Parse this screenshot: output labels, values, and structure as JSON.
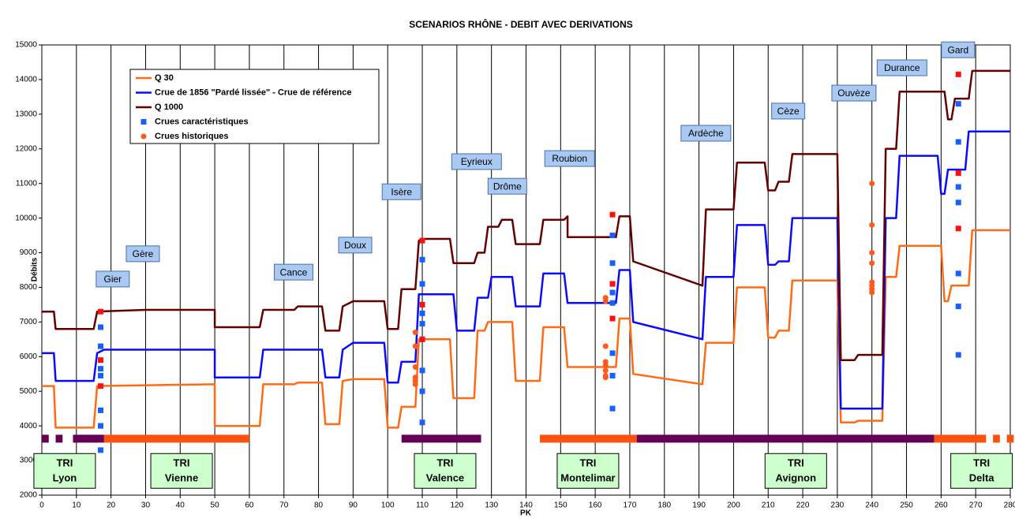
{
  "chart_data": {
    "type": "line",
    "title": "SCENARIOS RHÔNE - DEBIT AVEC DERIVATIONS",
    "x_label": "PK",
    "y_label": "Débits",
    "xlim": [
      0,
      280
    ],
    "ylim": [
      2000,
      15000
    ],
    "xticks": [
      0,
      10,
      20,
      30,
      40,
      50,
      60,
      70,
      80,
      90,
      100,
      110,
      120,
      130,
      140,
      150,
      160,
      170,
      180,
      190,
      200,
      210,
      220,
      230,
      240,
      250,
      260,
      270,
      280
    ],
    "yticks": [
      2000,
      3000,
      4000,
      5000,
      6000,
      7000,
      8000,
      9000,
      10000,
      11000,
      12000,
      13000,
      14000,
      15000
    ],
    "grid": "x",
    "series": [
      {
        "name": "Q 30",
        "color": "#ff6a13",
        "x": [
          0,
          3.5,
          4,
          15,
          16,
          50,
          50,
          63,
          64,
          73,
          74,
          81,
          82,
          86,
          87,
          90,
          99,
          100,
          103,
          104,
          108,
          109,
          118,
          119,
          125,
          126,
          128,
          129,
          136,
          137,
          144,
          145,
          151,
          152,
          166,
          167,
          170,
          171,
          191,
          192,
          200,
          201,
          209,
          210,
          212,
          213,
          216,
          217,
          230,
          231,
          235,
          236,
          243,
          244,
          247,
          248,
          260,
          261,
          262,
          263,
          268,
          269,
          280
        ],
        "values": [
          5150,
          5150,
          3950,
          3950,
          5150,
          5200,
          4000,
          4000,
          5200,
          5200,
          5250,
          5250,
          4050,
          4050,
          5300,
          5350,
          5350,
          3950,
          3950,
          4550,
          4550,
          6500,
          6500,
          4800,
          4800,
          6750,
          6750,
          7000,
          7000,
          5300,
          5300,
          6850,
          6850,
          5700,
          5700,
          7100,
          7100,
          5500,
          5200,
          6400,
          6400,
          8000,
          8000,
          6550,
          6550,
          6750,
          6750,
          8200,
          8200,
          4100,
          4100,
          4150,
          4150,
          8300,
          8300,
          9200,
          9200,
          7600,
          7600,
          8050,
          8050,
          9650,
          9650
        ]
      },
      {
        "name": "Crue de 1856 \"Pardé lissée\" - Crue de référence",
        "color": "#0a0aff",
        "x": [
          0,
          3.5,
          4,
          15,
          16,
          18,
          50,
          50,
          63,
          64,
          81,
          82,
          86,
          87,
          90,
          99,
          100,
          103,
          104,
          108,
          109,
          119,
          120,
          125,
          126,
          129,
          130,
          136,
          137,
          144,
          145,
          151,
          152,
          166,
          167,
          170,
          171,
          191,
          192,
          200,
          201,
          209,
          210,
          212,
          213,
          216,
          217,
          230,
          231,
          243,
          244,
          247,
          248,
          259,
          260,
          261,
          262,
          267,
          268,
          280
        ],
        "values": [
          6100,
          6100,
          5300,
          5300,
          6100,
          6200,
          6200,
          5400,
          5400,
          6200,
          6200,
          5400,
          5400,
          6200,
          6400,
          6400,
          5250,
          5250,
          5850,
          5850,
          7800,
          7800,
          6750,
          6750,
          7700,
          7700,
          8300,
          8300,
          7450,
          7450,
          8400,
          8400,
          7550,
          7550,
          8500,
          8500,
          7000,
          6500,
          8300,
          8300,
          9800,
          9800,
          8650,
          8650,
          8750,
          8750,
          10000,
          10000,
          4500,
          4500,
          10000,
          10000,
          11800,
          11800,
          10700,
          10700,
          11400,
          11400,
          12500,
          12500
        ]
      },
      {
        "name": "Q 1000",
        "color": "#660000",
        "x": [
          0,
          3.5,
          4,
          15,
          16,
          30,
          50,
          50,
          63,
          64,
          73,
          74,
          81,
          82,
          86,
          87,
          90,
          99,
          100,
          103,
          104,
          108,
          109,
          110,
          118,
          119,
          125,
          126,
          128,
          129,
          132,
          133,
          136,
          137,
          144,
          145,
          151,
          152,
          152,
          166,
          167,
          170,
          171,
          191,
          192,
          200,
          201,
          209,
          210,
          212,
          213,
          216,
          217,
          230,
          231,
          235,
          236,
          243,
          244,
          247,
          248,
          261,
          262,
          263,
          264,
          268,
          269,
          280
        ],
        "values": [
          7300,
          7300,
          6800,
          6800,
          7300,
          7350,
          7350,
          6850,
          6850,
          7350,
          7350,
          7450,
          7450,
          6750,
          6750,
          7450,
          7600,
          7600,
          6800,
          6800,
          7950,
          7950,
          9350,
          9400,
          9400,
          8700,
          8700,
          9000,
          9000,
          9750,
          9750,
          9950,
          9950,
          9250,
          9250,
          9950,
          9950,
          10050,
          9450,
          9450,
          10050,
          10050,
          8750,
          8050,
          10250,
          10250,
          11600,
          11600,
          10800,
          10800,
          11050,
          11050,
          11850,
          11850,
          5900,
          5900,
          6050,
          6050,
          12000,
          12000,
          13650,
          13650,
          12850,
          12850,
          13450,
          13450,
          14250,
          14250
        ]
      }
    ],
    "scatter": [
      {
        "name": "Crues caractéristiques",
        "color": "#1560ff",
        "marker": "square",
        "x": [
          17,
          17,
          17,
          17,
          17,
          17,
          17,
          110,
          110,
          110,
          110,
          110,
          110,
          110,
          110,
          165,
          165,
          165,
          165,
          165,
          165,
          165,
          265,
          265,
          265,
          265,
          265,
          265,
          265
        ],
        "values": [
          6850,
          6300,
          5650,
          5450,
          4450,
          4000,
          3300,
          8800,
          8100,
          7250,
          6950,
          6500,
          5600,
          5000,
          4100,
          9500,
          8700,
          7850,
          7550,
          6100,
          5450,
          4500,
          13300,
          12200,
          10900,
          10450,
          8400,
          7450,
          6050
        ]
      },
      {
        "name": "Crues historiques",
        "color": "#ff5a1a",
        "marker": "circle",
        "x": [
          108,
          108,
          108,
          108,
          108,
          108,
          163,
          163,
          163,
          163,
          163,
          163,
          163,
          163,
          240,
          240,
          240,
          240,
          240,
          240,
          240,
          240
        ],
        "values": [
          6700,
          6300,
          5700,
          5400,
          5300,
          5200,
          7700,
          7600,
          6300,
          5850,
          5750,
          5600,
          5450,
          5400,
          11000,
          9800,
          9000,
          8700,
          8150,
          8050,
          7950,
          7850
        ]
      },
      {
        "color": "#ff1010",
        "marker": "square",
        "x": [
          17,
          17,
          17,
          110,
          110,
          110,
          165,
          165,
          165,
          265,
          265,
          265
        ],
        "values": [
          7300,
          5900,
          5150,
          9350,
          7500,
          6500,
          10100,
          8100,
          7100,
          14150,
          11300,
          9700
        ]
      }
    ],
    "band": {
      "y": 3630,
      "ranges": [
        {
          "start": 0,
          "end": 2,
          "color": "#660055"
        },
        {
          "start": 4,
          "end": 6,
          "color": "#660055"
        },
        {
          "start": 9,
          "end": 18,
          "color": "#660055"
        },
        {
          "start": 18,
          "end": 60,
          "color": "#ff5010"
        },
        {
          "start": 104,
          "end": 127,
          "color": "#660055"
        },
        {
          "start": 144,
          "end": 172,
          "color": "#ff5010"
        },
        {
          "start": 172,
          "end": 258,
          "color": "#660055"
        },
        {
          "start": 258,
          "end": 273,
          "color": "#ff5010"
        },
        {
          "start": 275,
          "end": 277,
          "color": "#ff5010"
        },
        {
          "start": 279,
          "end": 281,
          "color": "#ff5010"
        }
      ]
    },
    "annotations": [
      {
        "label": "Gier",
        "x": 20.5,
        "y": 8240
      },
      {
        "label": "Gère",
        "x": 29.2,
        "y": 8970
      },
      {
        "label": "Cance",
        "x": 72.8,
        "y": 8440
      },
      {
        "label": "Doux",
        "x": 90.6,
        "y": 9220
      },
      {
        "label": "Isère",
        "x": 104,
        "y": 10760
      },
      {
        "label": "Eyrieux",
        "x": 125.7,
        "y": 11630
      },
      {
        "label": "Drôme",
        "x": 134.6,
        "y": 10920
      },
      {
        "label": "Roubion",
        "x": 152.6,
        "y": 11720
      },
      {
        "label": "Ardèche",
        "x": 192,
        "y": 12450
      },
      {
        "label": "Cèze",
        "x": 215.8,
        "y": 13090
      },
      {
        "label": "Ouvèze",
        "x": 234.8,
        "y": 13610
      },
      {
        "label": "Durance",
        "x": 248.7,
        "y": 14340
      },
      {
        "label": "Gard",
        "x": 264.9,
        "y": 14860
      }
    ],
    "tri": [
      {
        "lines": [
          "TRI",
          "Lyon"
        ],
        "x": 6.6,
        "y": 2700
      },
      {
        "lines": [
          "TRI",
          "Vienne"
        ],
        "x": 40.4,
        "y": 2700
      },
      {
        "lines": [
          "TRI",
          "Valence"
        ],
        "x": 116.6,
        "y": 2700
      },
      {
        "lines": [
          "TRI",
          "Montelimar"
        ],
        "x": 157.9,
        "y": 2700
      },
      {
        "lines": [
          "TRI",
          "Avignon"
        ],
        "x": 218,
        "y": 2700
      },
      {
        "lines": [
          "TRI",
          "Delta"
        ],
        "x": 271.7,
        "y": 2700
      }
    ]
  }
}
